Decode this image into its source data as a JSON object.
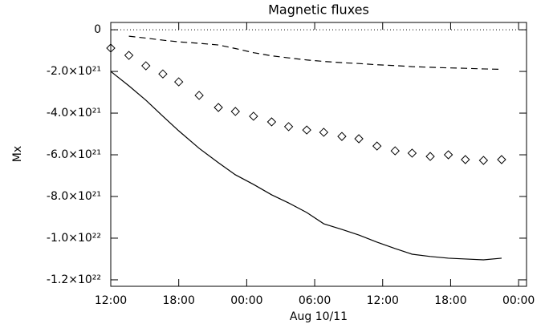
{
  "chart_data": {
    "type": "line",
    "title": "Magnetic fluxes",
    "xlabel": "Aug 10/11",
    "ylabel": "Mx",
    "xlim": [
      12,
      48.7
    ],
    "xticks": [
      {
        "value": 12,
        "label": "12:00"
      },
      {
        "value": 18,
        "label": "18:00"
      },
      {
        "value": 24,
        "label": "00:00"
      },
      {
        "value": 30,
        "label": "06:00"
      },
      {
        "value": 36,
        "label": "12:00"
      },
      {
        "value": 42,
        "label": "18:00"
      },
      {
        "value": 48,
        "label": "00:00"
      }
    ],
    "ylim": [
      -1.231e+22,
      3.5e+20
    ],
    "yticks": [
      0,
      {
        "value": -2e+21,
        "label": "-2.0×10²¹"
      },
      {
        "value": -4e+21,
        "label": "-4.0×10²¹"
      },
      {
        "value": -6e+21,
        "label": "-6.0×10²¹"
      },
      {
        "value": -8e+21,
        "label": "-8.0×10²¹"
      },
      {
        "value": -1e+22,
        "label": "-1.0×10²²"
      },
      {
        "value": -1.2e+22,
        "label": "-1.2×10²²"
      }
    ],
    "hline": 0,
    "x": [
      12.0,
      13.6,
      15.1,
      16.6,
      18.0,
      19.8,
      21.5,
      23.0,
      24.6,
      26.2,
      27.7,
      29.3,
      30.8,
      32.4,
      33.9,
      35.5,
      37.1,
      38.6,
      40.2,
      41.8,
      43.3,
      44.9,
      46.5
    ],
    "series": [
      {
        "color": "#000000",
        "style": "solid",
        "values": [
          -2e+21,
          -2.69e+21,
          -3.38e+21,
          -4.15e+21,
          -4.85e+21,
          -5.69e+21,
          -6.38e+21,
          -6.96e+21,
          -7.42e+21,
          -7.92e+21,
          -8.31e+21,
          -8.77e+21,
          -9.31e+21,
          -9.58e+21,
          -9.85e+21,
          -1.019e+22,
          -1.05e+22,
          -1.077e+22,
          -1.088e+22,
          -1.096e+22,
          -1.1e+22,
          -1.104e+22,
          -1.096e+22
        ]
      },
      {
        "color": "#000000",
        "style": "dashed",
        "values": [
          null,
          -3.1e+20,
          -4e+20,
          -5e+20,
          -5.8e+20,
          -6.5e+20,
          -7.3e+20,
          -9e+20,
          -1.1e+21,
          -1.25e+21,
          -1.35e+21,
          -1.45e+21,
          -1.52e+21,
          -1.58e+21,
          -1.62e+21,
          -1.68e+21,
          -1.72e+21,
          -1.77e+21,
          -1.8e+21,
          -1.83e+21,
          -1.85e+21,
          -1.88e+21,
          -1.9e+21
        ]
      },
      {
        "color": "#000000",
        "style": "diamond",
        "values": [
          -8.8e+20,
          -1.23e+21,
          -1.73e+21,
          -2.12e+21,
          -2.5e+21,
          -3.15e+21,
          -3.73e+21,
          -3.92e+21,
          -4.15e+21,
          -4.42e+21,
          -4.65e+21,
          -4.81e+21,
          -4.92e+21,
          -5.12e+21,
          -5.23e+21,
          -5.58e+21,
          -5.81e+21,
          -5.92e+21,
          -6.08e+21,
          -6e+21,
          -6.23e+21,
          -6.27e+21,
          -6.23e+21
        ]
      }
    ]
  }
}
